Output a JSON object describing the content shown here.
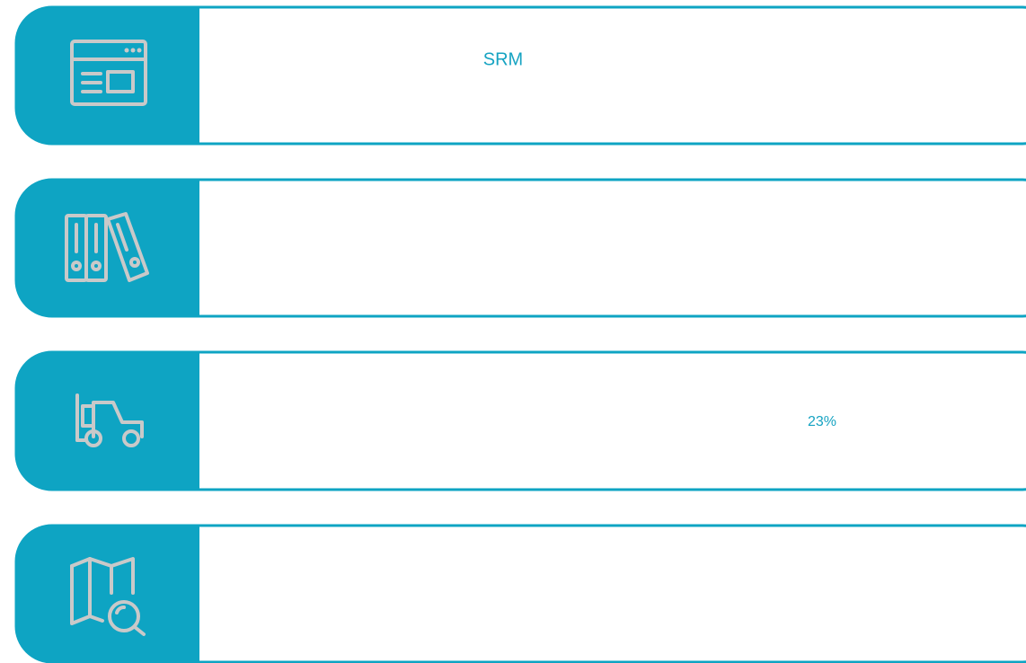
{
  "srm_label": "SRM",
  "percent_label": "23%"
}
